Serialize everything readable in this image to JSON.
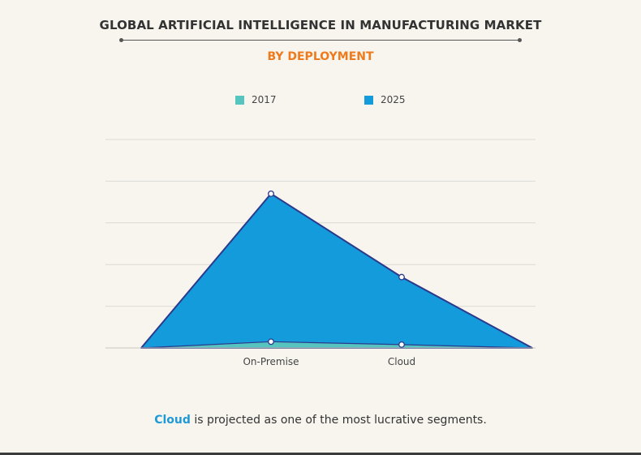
{
  "header": {
    "title": "GLOBAL ARTIFICIAL INTELLIGENCE IN MANUFACTURING MARKET",
    "subtitle": "BY DEPLOYMENT",
    "subtitle_color": "#ee7a1c"
  },
  "chart_data": {
    "type": "area",
    "categories": [
      "On-Premise",
      "Cloud"
    ],
    "series": [
      {
        "name": "2017",
        "values": [
          0.15,
          0.08
        ],
        "color": "#56c5c0"
      },
      {
        "name": "2025",
        "values": [
          3.7,
          1.7
        ],
        "color": "#139bdc"
      }
    ],
    "ylim": [
      0,
      5
    ],
    "grid": true,
    "legend_position": "top",
    "line_color": "#2c3a8c"
  },
  "footnote": {
    "highlight": "Cloud",
    "text": " is projected as one of the most lucrative segments."
  }
}
